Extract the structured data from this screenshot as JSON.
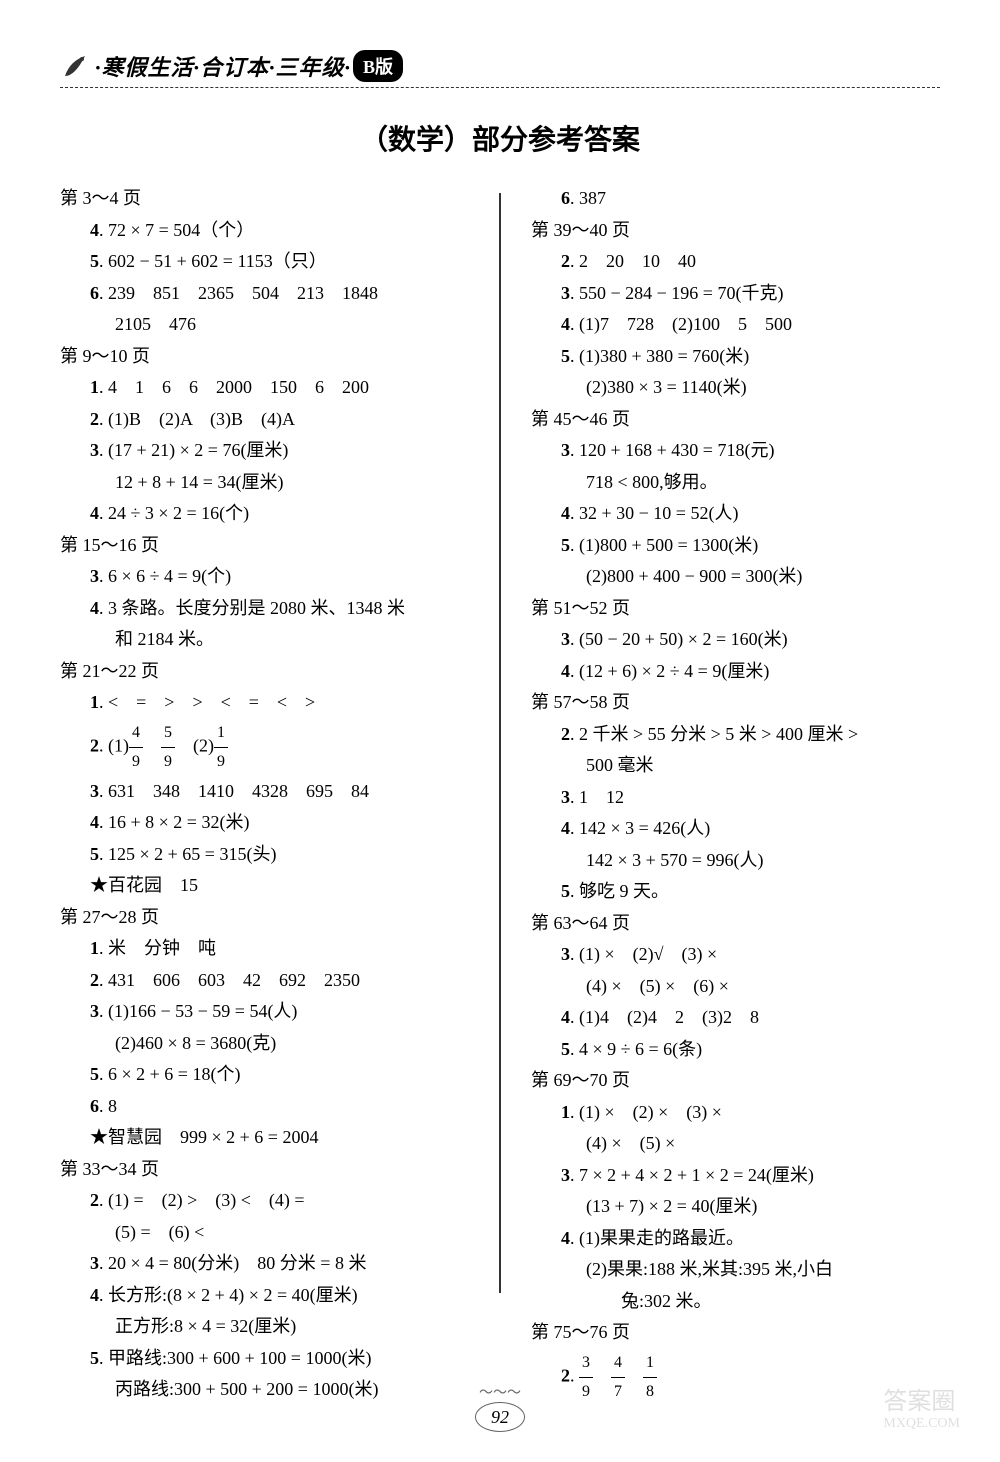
{
  "header": {
    "text": "·寒假生活·合订本·三年级·",
    "badge": "B版"
  },
  "mainTitle": "（数学）部分参考答案",
  "leftColumn": {
    "sections": [
      {
        "title": "第 3～4 页",
        "items": [
          {
            "num": "4",
            "text": ". 72 × 7 = 504（个）"
          },
          {
            "num": "5",
            "text": ". 602 − 51 + 602 = 1153（只）"
          },
          {
            "num": "6",
            "text": ". 239　851　2365　504　213　1848"
          },
          {
            "sub": true,
            "text": "2105　476"
          }
        ]
      },
      {
        "title": "第 9～10 页",
        "items": [
          {
            "num": "1",
            "text": ". 4　1　6　6　2000　150　6　200"
          },
          {
            "num": "2",
            "text": ". (1)B　(2)A　(3)B　(4)A"
          },
          {
            "num": "3",
            "text": ". (17 + 21) × 2 = 76(厘米)"
          },
          {
            "sub": true,
            "text": "12 + 8 + 14 = 34(厘米)"
          },
          {
            "num": "4",
            "text": ". 24 ÷ 3 × 2 = 16(个)"
          }
        ]
      },
      {
        "title": "第 15～16 页",
        "items": [
          {
            "num": "3",
            "text": ". 6 × 6 ÷ 4 = 9(个)"
          },
          {
            "num": "4",
            "text": ". 3 条路。长度分别是 2080 米、1348 米"
          },
          {
            "sub": true,
            "text": "和 2184 米。"
          }
        ]
      },
      {
        "title": "第 21～22 页",
        "items": [
          {
            "num": "1",
            "text": ". <　=　>　>　<　=　<　>"
          },
          {
            "num": "2",
            "text": ". (1)",
            "frac1": {
              "n": "4",
              "d": "9"
            },
            "mid": "　",
            "frac2": {
              "n": "5",
              "d": "9"
            },
            "text2": "　(2)",
            "frac3": {
              "n": "1",
              "d": "9"
            }
          },
          {
            "num": "3",
            "text": ". 631　348　1410　4328　695　84"
          },
          {
            "num": "4",
            "text": ". 16 + 8 × 2 = 32(米)"
          },
          {
            "num": "5",
            "text": ". 125 × 2 + 65 = 315(头)"
          },
          {
            "star": true,
            "text": "★百花园　15"
          }
        ]
      },
      {
        "title": "第 27～28 页",
        "items": [
          {
            "num": "1",
            "text": ". 米　分钟　吨"
          },
          {
            "num": "2",
            "text": ". 431　606　603　42　692　2350"
          },
          {
            "num": "3",
            "text": ". (1)166 − 53 − 59 = 54(人)"
          },
          {
            "sub": true,
            "text": "(2)460 × 8 = 3680(克)"
          },
          {
            "num": "5",
            "text": ". 6 × 2 + 6 = 18(个)"
          },
          {
            "num": "6",
            "text": ". 8"
          },
          {
            "star": true,
            "text": "★智慧园　999 × 2 + 6 = 2004"
          }
        ]
      },
      {
        "title": "第 33～34 页",
        "items": [
          {
            "num": "2",
            "text": ". (1) =　(2) >　(3) <　(4) ="
          },
          {
            "sub": true,
            "text": "(5) =　(6) <"
          },
          {
            "num": "3",
            "text": ". 20 × 4 = 80(分米)　80 分米 = 8 米"
          },
          {
            "num": "4",
            "text": ". 长方形:(8 × 2 + 4) × 2 = 40(厘米)"
          },
          {
            "sub": true,
            "text": "正方形:8 × 4 = 32(厘米)"
          },
          {
            "num": "5",
            "text": ". 甲路线:300 + 600 + 100 = 1000(米)"
          },
          {
            "sub": true,
            "text": "丙路线:300 + 500 + 200 = 1000(米)"
          }
        ]
      }
    ]
  },
  "rightColumn": {
    "sections": [
      {
        "title": "",
        "items": [
          {
            "num": "6",
            "text": ". 387"
          }
        ]
      },
      {
        "title": "第 39～40 页",
        "items": [
          {
            "num": "2",
            "text": ". 2　20　10　40"
          },
          {
            "num": "3",
            "text": ". 550 − 284 − 196 = 70(千克)"
          },
          {
            "num": "4",
            "text": ". (1)7　728　(2)100　5　500"
          },
          {
            "num": "5",
            "text": ". (1)380 + 380 = 760(米)"
          },
          {
            "sub": true,
            "text": "(2)380 × 3 = 1140(米)"
          }
        ]
      },
      {
        "title": "第 45～46 页",
        "items": [
          {
            "num": "3",
            "text": ". 120 + 168 + 430 = 718(元)"
          },
          {
            "sub": true,
            "text": "718 < 800,够用。"
          },
          {
            "num": "4",
            "text": ". 32 + 30 − 10 = 52(人)"
          },
          {
            "num": "5",
            "text": ". (1)800 + 500 = 1300(米)"
          },
          {
            "sub": true,
            "text": "(2)800 + 400 − 900 = 300(米)"
          }
        ]
      },
      {
        "title": "第 51～52 页",
        "items": [
          {
            "num": "3",
            "text": ". (50 − 20 + 50) × 2 = 160(米)"
          },
          {
            "num": "4",
            "text": ". (12 + 6) × 2 ÷ 4 = 9(厘米)"
          }
        ]
      },
      {
        "title": "第 57～58 页",
        "items": [
          {
            "num": "2",
            "text": ". 2 千米 > 55 分米 > 5 米 > 400 厘米 >"
          },
          {
            "sub": true,
            "text": "500 毫米"
          },
          {
            "num": "3",
            "text": ". 1　12"
          },
          {
            "num": "4",
            "text": ". 142 × 3 = 426(人)"
          },
          {
            "sub": true,
            "text": "142 × 3 + 570 = 996(人)"
          },
          {
            "num": "5",
            "text": ". 够吃 9 天。"
          }
        ]
      },
      {
        "title": "第 63～64 页",
        "items": [
          {
            "num": "3",
            "text": ". (1) ×　(2)√　(3) ×"
          },
          {
            "sub": true,
            "text": "(4) ×　(5) ×　(6) ×"
          },
          {
            "num": "4",
            "text": ". (1)4　(2)4　2　(3)2　8"
          },
          {
            "num": "5",
            "text": ". 4 × 9 ÷ 6 = 6(条)"
          }
        ]
      },
      {
        "title": "第 69～70 页",
        "items": [
          {
            "num": "1",
            "text": ". (1) ×　(2) ×　(3) ×"
          },
          {
            "sub": true,
            "text": "(4) ×　(5) ×"
          },
          {
            "num": "3",
            "text": ". 7 × 2 + 4 × 2 + 1 × 2 = 24(厘米)"
          },
          {
            "sub": true,
            "text": "(13 + 7) × 2 = 40(厘米)"
          },
          {
            "num": "4",
            "text": ". (1)果果走的路最近。"
          },
          {
            "sub": true,
            "text": "(2)果果:188 米,米其:395 米,小白"
          },
          {
            "sub2": true,
            "text": "兔:302 米。"
          }
        ]
      },
      {
        "title": "第 75～76 页",
        "items": [
          {
            "num": "2",
            "text": ". ",
            "frac1": {
              "n": "3",
              "d": "9"
            },
            "mid": "　",
            "frac2": {
              "n": "4",
              "d": "7"
            },
            "mid2": "　",
            "frac3": {
              "n": "1",
              "d": "8"
            }
          }
        ]
      }
    ]
  },
  "pageNumber": "92",
  "watermark": {
    "main": "答案圈",
    "sub": "MXQE.COM"
  }
}
